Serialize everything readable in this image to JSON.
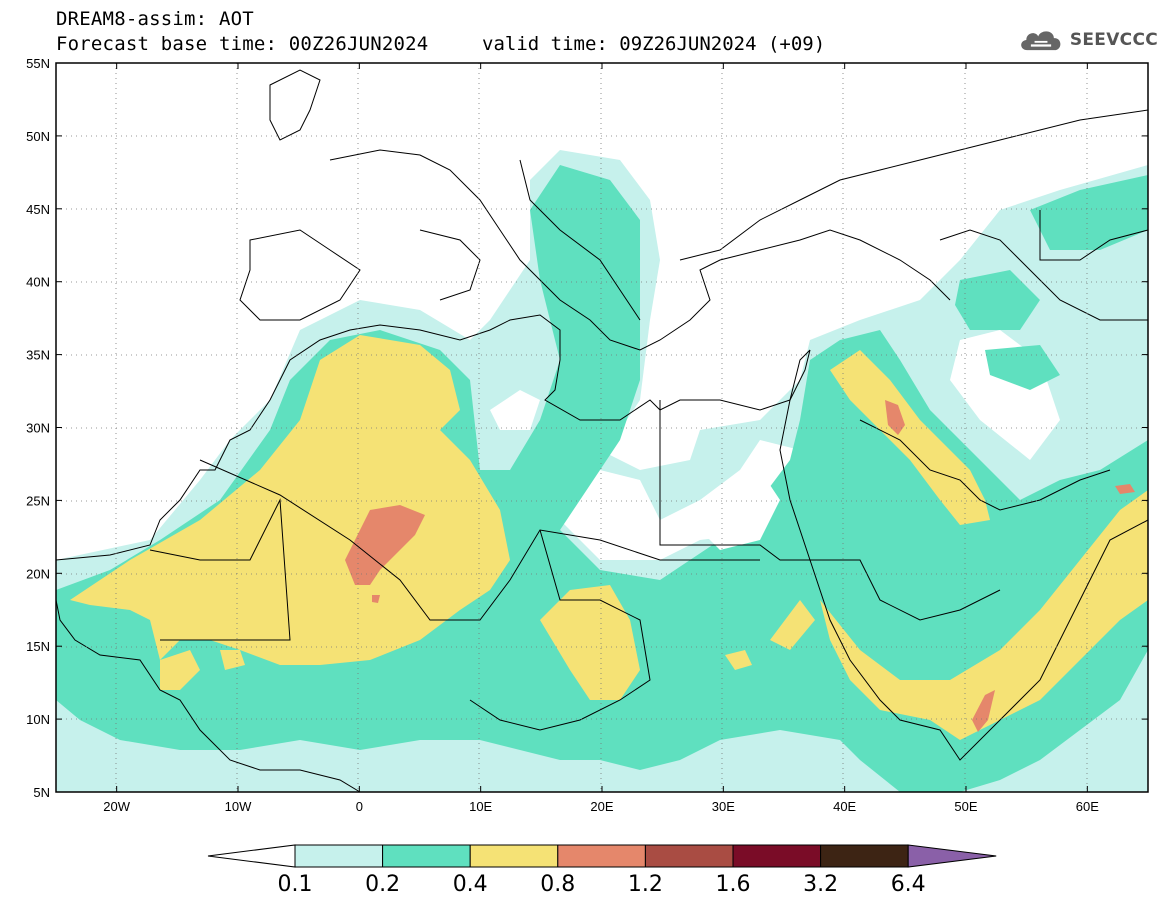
{
  "header": {
    "title_line1": "DREAM8-assim: AOT",
    "base_time": "Forecast base time: 00Z26JUN2024",
    "valid_time": "valid time: 09Z26JUN2024 (+09)",
    "logo_text": "SEEVCCC",
    "logo_icon": "cloud-icon"
  },
  "map": {
    "lon_range": [
      -25,
      65
    ],
    "lat_range": [
      5,
      55
    ],
    "lat_ticks": [
      "55N",
      "50N",
      "45N",
      "40N",
      "35N",
      "30N",
      "25N",
      "20N",
      "15N",
      "10N",
      "5N"
    ],
    "lon_ticks": [
      "20W",
      "10W",
      "0",
      "10E",
      "20E",
      "30E",
      "40E",
      "50E",
      "60E"
    ],
    "grid": "dotted"
  },
  "colorbar": {
    "levels": [
      "0.1",
      "0.2",
      "0.4",
      "0.8",
      "1.2",
      "1.6",
      "3.2",
      "6.4"
    ],
    "colors": [
      "#c6f1ec",
      "#5fe0bf",
      "#f5e275",
      "#e5876b",
      "#a94c43",
      "#7a0c27",
      "#3d2414",
      "#8a60a8"
    ]
  }
}
